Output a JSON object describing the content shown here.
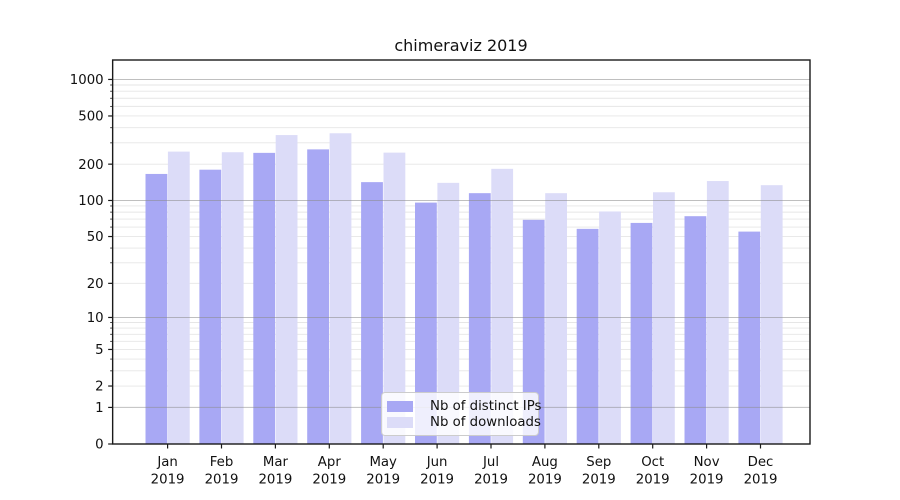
{
  "title": "chimeraviz 2019",
  "legend": {
    "items": [
      {
        "label": "Nb of distinct IPs"
      },
      {
        "label": "Nb of downloads"
      }
    ]
  },
  "chart_data": {
    "type": "bar",
    "title": "chimeraviz 2019",
    "categories": [
      {
        "month": "Jan",
        "year": "2019"
      },
      {
        "month": "Feb",
        "year": "2019"
      },
      {
        "month": "Mar",
        "year": "2019"
      },
      {
        "month": "Apr",
        "year": "2019"
      },
      {
        "month": "May",
        "year": "2019"
      },
      {
        "month": "Jun",
        "year": "2019"
      },
      {
        "month": "Jul",
        "year": "2019"
      },
      {
        "month": "Aug",
        "year": "2019"
      },
      {
        "month": "Sep",
        "year": "2019"
      },
      {
        "month": "Oct",
        "year": "2019"
      },
      {
        "month": "Nov",
        "year": "2019"
      },
      {
        "month": "Dec",
        "year": "2019"
      }
    ],
    "series": [
      {
        "name": "Nb of distinct IPs",
        "key": "distinct-ips",
        "color": "#a8a8f4",
        "values": [
          166,
          180,
          248,
          265,
          142,
          96,
          115,
          69,
          58,
          65,
          74,
          55
        ]
      },
      {
        "name": "Nb of downloads",
        "key": "downloads",
        "color": "#dcdcf8",
        "values": [
          254,
          251,
          348,
          360,
          249,
          140,
          183,
          115,
          81,
          117,
          145,
          134
        ]
      }
    ],
    "yscale": "log1p",
    "yticks": [
      0,
      1,
      2,
      5,
      10,
      20,
      50,
      100,
      200,
      500,
      1000
    ],
    "ytick_labels": [
      "0",
      "1",
      "2",
      "5",
      "10",
      "20",
      "50",
      "100",
      "200",
      "500",
      "1000"
    ],
    "ylim": [
      0,
      1446
    ],
    "grid": {
      "major_color": "#8a8a8a",
      "minor_color": "#d9d9d9"
    },
    "legend_position": "lower center",
    "axis_color": "#1a1a1a"
  }
}
